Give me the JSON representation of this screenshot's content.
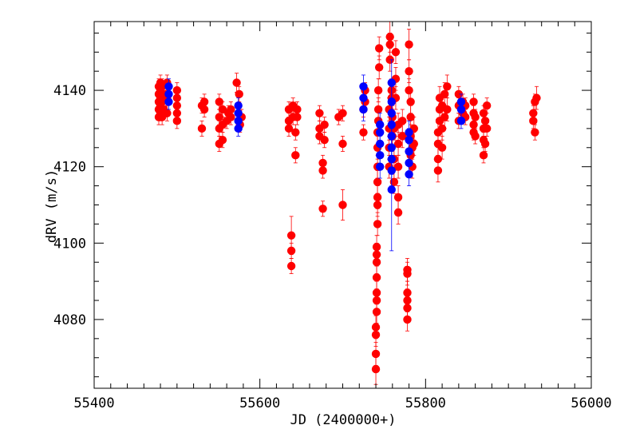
{
  "chart_data": {
    "type": "scatter",
    "title": "",
    "xlabel": "JD (2400000+)",
    "ylabel": "dRV (m/s)",
    "xlim": [
      55400,
      56000
    ],
    "ylim": [
      4062,
      4158
    ],
    "x_ticks": [
      55400,
      55600,
      55800,
      56000
    ],
    "x_tick_labels": [
      "55400",
      "55600",
      "55800",
      "56000"
    ],
    "y_ticks": [
      4080,
      4100,
      4120,
      4140
    ],
    "y_tick_labels": [
      "4080",
      "4100",
      "4120",
      "4140"
    ],
    "grid": false,
    "legend": "none",
    "error_bars": true,
    "series": [
      {
        "color": "#ff0000",
        "points": [
          [
            55478,
            4133,
            2
          ],
          [
            55478,
            4135,
            2
          ],
          [
            55478,
            4137,
            2
          ],
          [
            55478,
            4139,
            2
          ],
          [
            55478,
            4141,
            2
          ],
          [
            55480,
            4134,
            2
          ],
          [
            55480,
            4136,
            2
          ],
          [
            55480,
            4138,
            2
          ],
          [
            55480,
            4140,
            2
          ],
          [
            55480,
            4142,
            2
          ],
          [
            55482,
            4133,
            2
          ],
          [
            55482,
            4137,
            2
          ],
          [
            55482,
            4141,
            2
          ],
          [
            55484,
            4135,
            2
          ],
          [
            55484,
            4139,
            2
          ],
          [
            55488,
            4134,
            2
          ],
          [
            55488,
            4138,
            2
          ],
          [
            55488,
            4142,
            2
          ],
          [
            55500,
            4132,
            2
          ],
          [
            55500,
            4134,
            2
          ],
          [
            55500,
            4136,
            2
          ],
          [
            55500,
            4138,
            2
          ],
          [
            55500,
            4140,
            2
          ],
          [
            55530,
            4130,
            2
          ],
          [
            55530,
            4136,
            2
          ],
          [
            55533,
            4137,
            2
          ],
          [
            55533,
            4135,
            2
          ],
          [
            55551,
            4126,
            2
          ],
          [
            55551,
            4130,
            2
          ],
          [
            55551,
            4133,
            2
          ],
          [
            55551,
            4137,
            2
          ],
          [
            55555,
            4127,
            2
          ],
          [
            55555,
            4131,
            2
          ],
          [
            55555,
            4135,
            2
          ],
          [
            55560,
            4132,
            2
          ],
          [
            55562,
            4134,
            2
          ],
          [
            55565,
            4133,
            2
          ],
          [
            55565,
            4135,
            2
          ],
          [
            55572,
            4142,
            2.5
          ],
          [
            55575,
            4139,
            2
          ],
          [
            55576,
            4131,
            2
          ],
          [
            55578,
            4133,
            2
          ],
          [
            55635,
            4130,
            2
          ],
          [
            55635,
            4132,
            2
          ],
          [
            55635,
            4135,
            2
          ],
          [
            55638,
            4094,
            2
          ],
          [
            55638,
            4098,
            2
          ],
          [
            55638,
            4102,
            5
          ],
          [
            55640,
            4133,
            2
          ],
          [
            55640,
            4136,
            2
          ],
          [
            55643,
            4129,
            2
          ],
          [
            55643,
            4123,
            2
          ],
          [
            55645,
            4133,
            2
          ],
          [
            55645,
            4135,
            2
          ],
          [
            55672,
            4128,
            2
          ],
          [
            55672,
            4130,
            2
          ],
          [
            55672,
            4134,
            2
          ],
          [
            55676,
            4109,
            2
          ],
          [
            55676,
            4119,
            2
          ],
          [
            55676,
            4121,
            2
          ],
          [
            55678,
            4127,
            2
          ],
          [
            55678,
            4131,
            2
          ],
          [
            55695,
            4133,
            2
          ],
          [
            55700,
            4126,
            2
          ],
          [
            55700,
            4110,
            4
          ],
          [
            55700,
            4134,
            2
          ],
          [
            55725,
            4129,
            2
          ],
          [
            55725,
            4135,
            2
          ],
          [
            55727,
            4137,
            2
          ],
          [
            55727,
            4140,
            2
          ],
          [
            55740,
            4067,
            4
          ],
          [
            55740,
            4071,
            3
          ],
          [
            55740,
            4076,
            3
          ],
          [
            55740,
            4078,
            3
          ],
          [
            55741,
            4082,
            3
          ],
          [
            55741,
            4085,
            3
          ],
          [
            55741,
            4087,
            3
          ],
          [
            55741,
            4091,
            3
          ],
          [
            55741,
            4095,
            3
          ],
          [
            55741,
            4097,
            3
          ],
          [
            55741,
            4099,
            3
          ],
          [
            55742,
            4105,
            3
          ],
          [
            55742,
            4110,
            3
          ],
          [
            55742,
            4112,
            3
          ],
          [
            55742,
            4116,
            3
          ],
          [
            55742,
            4120,
            3
          ],
          [
            55742,
            4125,
            3
          ],
          [
            55742,
            4129,
            3
          ],
          [
            55743,
            4132,
            3
          ],
          [
            55743,
            4135,
            3
          ],
          [
            55743,
            4140,
            3
          ],
          [
            55744,
            4146,
            3
          ],
          [
            55744,
            4151,
            3
          ],
          [
            55756,
            4120,
            3
          ],
          [
            55756,
            4125,
            3
          ],
          [
            55756,
            4130,
            3
          ],
          [
            55756,
            4135,
            3
          ],
          [
            55757,
            4148,
            3
          ],
          [
            55757,
            4154,
            4
          ],
          [
            55757,
            4152,
            3
          ],
          [
            55759,
            4140,
            3
          ],
          [
            55759,
            4138,
            3
          ],
          [
            55760,
            4128,
            3
          ],
          [
            55760,
            4133,
            3
          ],
          [
            55762,
            4116,
            3
          ],
          [
            55762,
            4122,
            3
          ],
          [
            55762,
            4130,
            3
          ],
          [
            55764,
            4138,
            3
          ],
          [
            55764,
            4143,
            3
          ],
          [
            55764,
            4150,
            3
          ],
          [
            55767,
            4108,
            3
          ],
          [
            55767,
            4112,
            3
          ],
          [
            55767,
            4120,
            3
          ],
          [
            55767,
            4126,
            3
          ],
          [
            55767,
            4131,
            3
          ],
          [
            55772,
            4128,
            3
          ],
          [
            55772,
            4132,
            3
          ],
          [
            55778,
            4080,
            3
          ],
          [
            55778,
            4083,
            3
          ],
          [
            55778,
            4085,
            3
          ],
          [
            55778,
            4087,
            3
          ],
          [
            55778,
            4092,
            3
          ],
          [
            55778,
            4093,
            3
          ],
          [
            55780,
            4140,
            3
          ],
          [
            55780,
            4145,
            3
          ],
          [
            55780,
            4152,
            4
          ],
          [
            55782,
            4123,
            3
          ],
          [
            55782,
            4128,
            3
          ],
          [
            55782,
            4133,
            3
          ],
          [
            55782,
            4137,
            3
          ],
          [
            55784,
            4120,
            3
          ],
          [
            55784,
            4125,
            3
          ],
          [
            55786,
            4130,
            3
          ],
          [
            55786,
            4126,
            3
          ],
          [
            55815,
            4119,
            3
          ],
          [
            55815,
            4122,
            3
          ],
          [
            55815,
            4126,
            3
          ],
          [
            55815,
            4129,
            3
          ],
          [
            55817,
            4132,
            3
          ],
          [
            55817,
            4135,
            3
          ],
          [
            55817,
            4138,
            3
          ],
          [
            55820,
            4125,
            3
          ],
          [
            55820,
            4130,
            3
          ],
          [
            55820,
            4136,
            3
          ],
          [
            55823,
            4133,
            3
          ],
          [
            55823,
            4139,
            3
          ],
          [
            55826,
            4135,
            3
          ],
          [
            55826,
            4141,
            3
          ],
          [
            55840,
            4132,
            2
          ],
          [
            55840,
            4136,
            2
          ],
          [
            55840,
            4139,
            2
          ],
          [
            55845,
            4134,
            2
          ],
          [
            55845,
            4137,
            2
          ],
          [
            55848,
            4133,
            2
          ],
          [
            55848,
            4136,
            2
          ],
          [
            55858,
            4129,
            2
          ],
          [
            55858,
            4131,
            2
          ],
          [
            55858,
            4134,
            2
          ],
          [
            55858,
            4137,
            2
          ],
          [
            55860,
            4128,
            2
          ],
          [
            55860,
            4133,
            2
          ],
          [
            55870,
            4123,
            2
          ],
          [
            55870,
            4127,
            2
          ],
          [
            55870,
            4130,
            2
          ],
          [
            55870,
            4134,
            2
          ],
          [
            55872,
            4126,
            2
          ],
          [
            55872,
            4132,
            2
          ],
          [
            55874,
            4130,
            2
          ],
          [
            55874,
            4136,
            2
          ],
          [
            55930,
            4132,
            2
          ],
          [
            55930,
            4134,
            2
          ],
          [
            55932,
            4137,
            2
          ],
          [
            55932,
            4129,
            2
          ],
          [
            55934,
            4138,
            3
          ]
        ]
      },
      {
        "color": "#0000ff",
        "points": [
          [
            55490,
            4137,
            2
          ],
          [
            55490,
            4139,
            2
          ],
          [
            55490,
            4141,
            2
          ],
          [
            55574,
            4130,
            2
          ],
          [
            55574,
            4132,
            2
          ],
          [
            55574,
            4134,
            2
          ],
          [
            55574,
            4136,
            2
          ],
          [
            55725,
            4135,
            3
          ],
          [
            55725,
            4138,
            3
          ],
          [
            55725,
            4141,
            3
          ],
          [
            55745,
            4120,
            3
          ],
          [
            55745,
            4123,
            3
          ],
          [
            55745,
            4126,
            3
          ],
          [
            55745,
            4129,
            3
          ],
          [
            55745,
            4131,
            3
          ],
          [
            55759,
            4114,
            16
          ],
          [
            55759,
            4119,
            4
          ],
          [
            55759,
            4122,
            4
          ],
          [
            55759,
            4125,
            4
          ],
          [
            55759,
            4128,
            4
          ],
          [
            55759,
            4131,
            4
          ],
          [
            55759,
            4134,
            4
          ],
          [
            55759,
            4137,
            4
          ],
          [
            55759,
            4142,
            6
          ],
          [
            55780,
            4118,
            3
          ],
          [
            55780,
            4121,
            3
          ],
          [
            55780,
            4124,
            3
          ],
          [
            55780,
            4127,
            3
          ],
          [
            55780,
            4129,
            3
          ],
          [
            55843,
            4132,
            2
          ],
          [
            55843,
            4135,
            2
          ],
          [
            55843,
            4137,
            2
          ]
        ]
      }
    ]
  }
}
